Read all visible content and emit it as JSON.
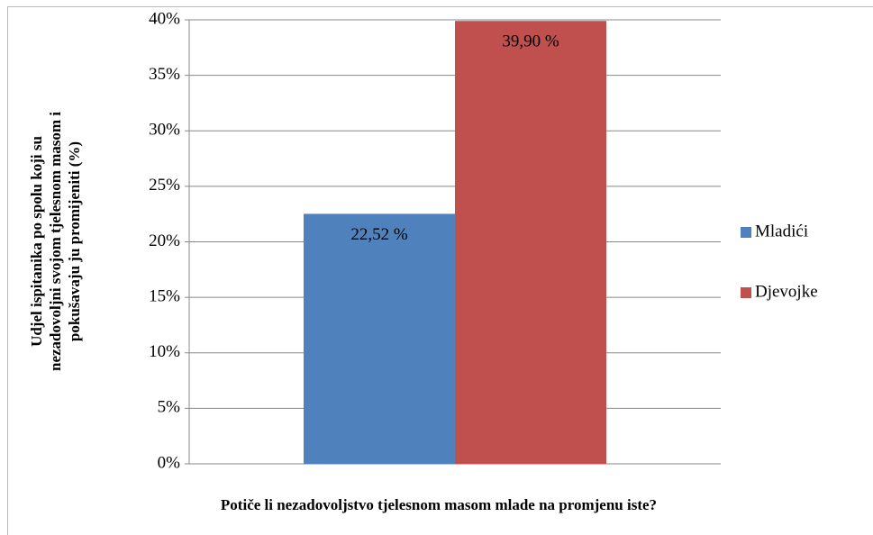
{
  "chart_data": {
    "type": "bar",
    "ylabel": [
      "Udjel ispitanika po spolu koji su",
      "nezadovoljni svojom tjelesnom masom i",
      "pokušavaju ju promijeniti (%)"
    ],
    "xlabel": "Potiče li nezadovoljstvo tjelesnom masom mlade na promjenu iste?",
    "categories": [
      null
    ],
    "series": [
      {
        "name": "Mladići",
        "color": "#4f81bd",
        "values": [
          22.52
        ],
        "value_labels": [
          "22,52 %"
        ]
      },
      {
        "name": "Djevojke",
        "color": "#c0504d",
        "values": [
          39.9
        ],
        "value_labels": [
          "39,90 %"
        ]
      }
    ],
    "ylim": [
      0,
      40
    ],
    "yticks": [
      {
        "value": 0,
        "label": "0%"
      },
      {
        "value": 5,
        "label": "5%"
      },
      {
        "value": 10,
        "label": "10%"
      },
      {
        "value": 15,
        "label": "15%"
      },
      {
        "value": 20,
        "label": "20%"
      },
      {
        "value": 25,
        "label": "25%"
      },
      {
        "value": 30,
        "label": "30%"
      },
      {
        "value": 35,
        "label": "35%"
      },
      {
        "value": 40,
        "label": "40%"
      }
    ],
    "grid": true,
    "legend": "right"
  }
}
